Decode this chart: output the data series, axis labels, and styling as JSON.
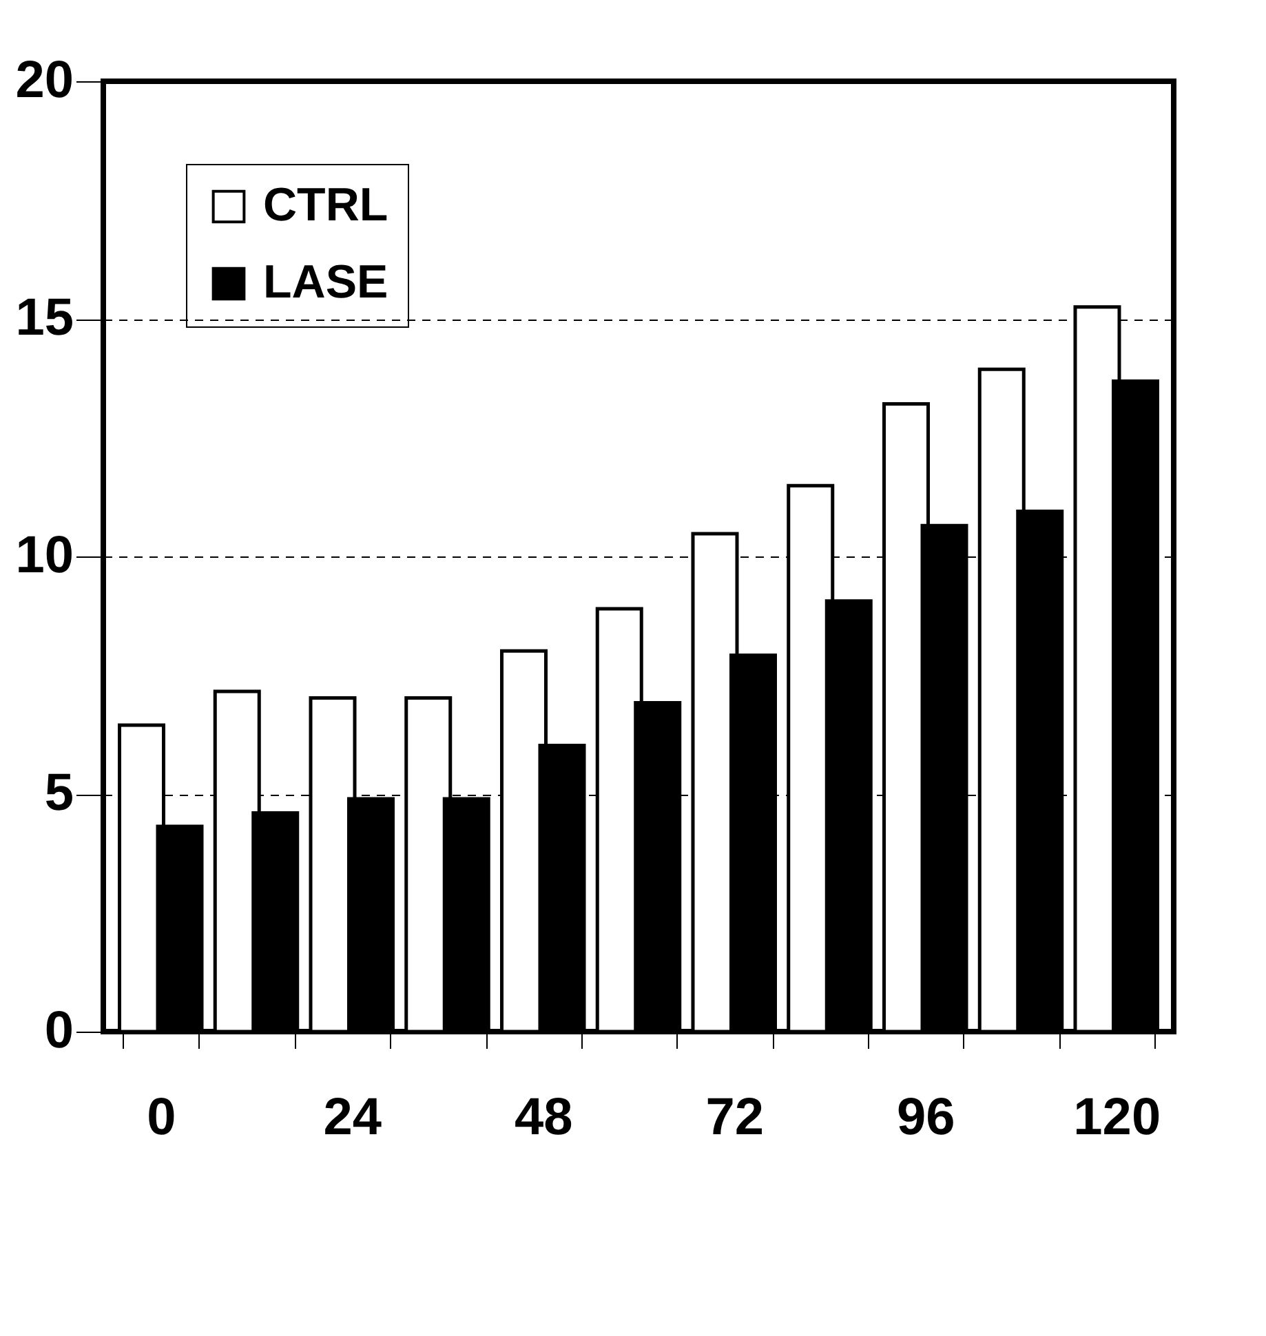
{
  "chart_data": {
    "type": "bar",
    "categories": [
      "0",
      null,
      "24",
      null,
      "48",
      null,
      "72",
      null,
      "96",
      null,
      "120"
    ],
    "series": [
      {
        "name": "CTRL",
        "color": "#ffffff",
        "values": [
          6.45,
          7.16,
          7.02,
          7.02,
          8.01,
          8.9,
          10.48,
          11.49,
          13.21,
          13.94,
          15.25
        ]
      },
      {
        "name": "LASE",
        "color": "#000000",
        "values": [
          4.32,
          4.6,
          4.9,
          4.9,
          6.02,
          6.92,
          7.92,
          9.06,
          10.65,
          10.95,
          13.69
        ]
      }
    ],
    "ylim": [
      0,
      20
    ],
    "yticks": [
      0,
      5,
      10,
      15,
      20
    ],
    "grid": "y",
    "legend": "top left"
  }
}
